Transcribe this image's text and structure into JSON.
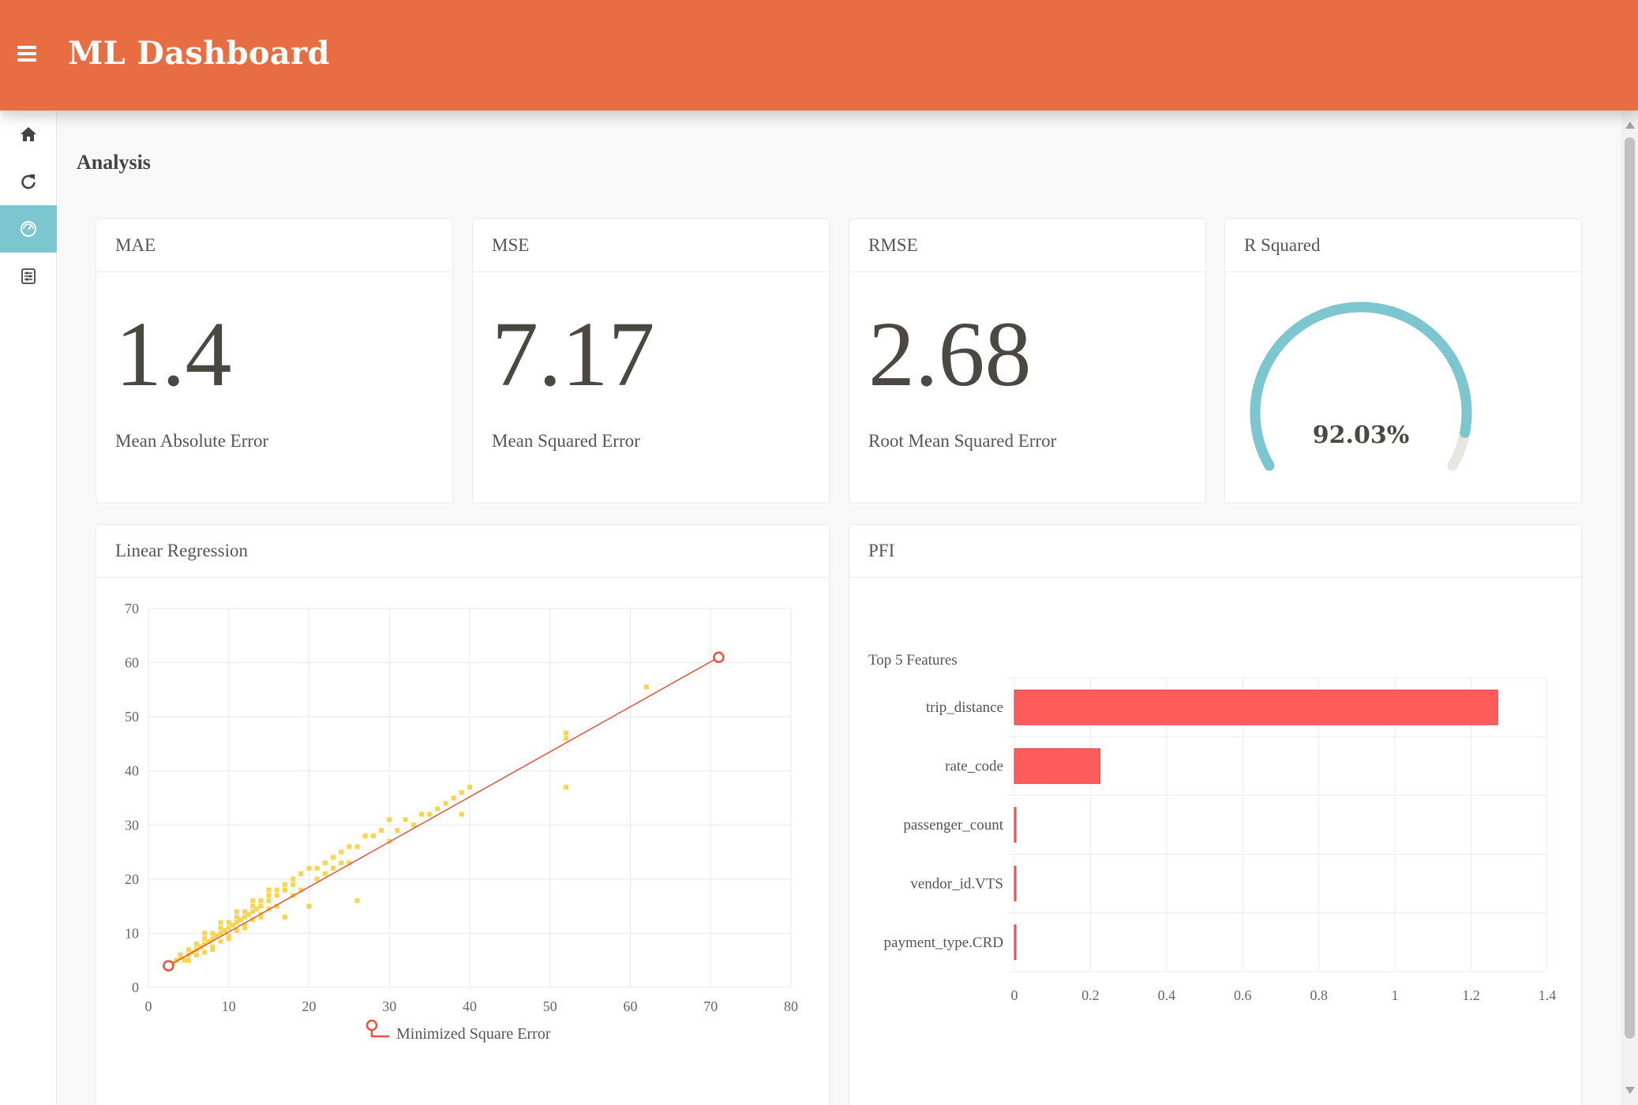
{
  "app": {
    "title": "ML Dashboard"
  },
  "sidebar": {
    "items": [
      {
        "icon": "home-icon",
        "active": false
      },
      {
        "icon": "refresh-icon",
        "active": false
      },
      {
        "icon": "speedometer-icon",
        "active": true
      },
      {
        "icon": "settings-document-icon",
        "active": false
      }
    ]
  },
  "colors": {
    "header": "#e96d43",
    "accent": "#7cc6d0",
    "scatter": "#f5d64e",
    "line": "#e5543f",
    "bar": "#ff5c5c"
  },
  "page": {
    "title": "Analysis"
  },
  "metrics": [
    {
      "title": "MAE",
      "value": "1.4",
      "label": "Mean Absolute Error"
    },
    {
      "title": "MSE",
      "value": "7.17",
      "label": "Mean Squared Error"
    },
    {
      "title": "RMSE",
      "value": "2.68",
      "label": "Root Mean Squared Error"
    }
  ],
  "gauge": {
    "title": "R Squared",
    "value": 0.9203,
    "display": "92.03%"
  },
  "regression": {
    "title": "Linear Regression",
    "chart_data": {
      "type": "scatter",
      "xlim": [
        0,
        80
      ],
      "ylim": [
        0,
        70
      ],
      "x_ticks": [
        0,
        10,
        20,
        30,
        40,
        50,
        60,
        70,
        80
      ],
      "y_ticks": [
        0,
        10,
        20,
        30,
        40,
        50,
        60,
        70
      ],
      "grid": true,
      "legend_position": "bottom",
      "series": [
        {
          "type": "scatter",
          "points": [
            [
              3,
              4.5
            ],
            [
              3.5,
              5
            ],
            [
              4,
              5.5
            ],
            [
              4.5,
              5
            ],
            [
              5,
              6
            ],
            [
              5,
              7
            ],
            [
              5.5,
              6.5
            ],
            [
              6,
              7
            ],
            [
              6,
              8
            ],
            [
              6.5,
              7.5
            ],
            [
              7,
              8
            ],
            [
              7,
              9
            ],
            [
              7.5,
              8.5
            ],
            [
              8,
              9
            ],
            [
              8,
              10
            ],
            [
              8.5,
              9.5
            ],
            [
              9,
              10
            ],
            [
              9,
              11
            ],
            [
              9.5,
              10.5
            ],
            [
              10,
              11
            ],
            [
              10,
              12
            ],
            [
              10.5,
              11.5
            ],
            [
              11,
              12
            ],
            [
              11,
              13
            ],
            [
              11.5,
              12.5
            ],
            [
              12,
              13
            ],
            [
              12,
              14
            ],
            [
              12.5,
              13.5
            ],
            [
              13,
              14
            ],
            [
              13,
              15
            ],
            [
              13.5,
              14.5
            ],
            [
              14,
              15
            ],
            [
              14,
              16
            ],
            [
              15,
              16
            ],
            [
              15,
              17
            ],
            [
              16,
              17
            ],
            [
              16,
              18
            ],
            [
              17,
              18
            ],
            [
              17,
              19
            ],
            [
              18,
              20
            ],
            [
              18,
              19
            ],
            [
              19,
              21
            ],
            [
              20,
              22
            ],
            [
              21,
              22
            ],
            [
              22,
              23
            ],
            [
              23,
              24
            ],
            [
              24,
              25
            ],
            [
              25,
              26
            ],
            [
              26,
              26
            ],
            [
              27,
              28
            ],
            [
              28,
              28
            ],
            [
              29,
              29
            ],
            [
              30,
              31
            ],
            [
              31,
              29
            ],
            [
              32,
              31
            ],
            [
              33,
              30
            ],
            [
              34,
              32
            ],
            [
              35,
              32
            ],
            [
              36,
              33
            ],
            [
              37,
              34
            ],
            [
              38,
              35
            ],
            [
              39,
              36
            ],
            [
              40,
              37
            ],
            [
              39,
              32
            ],
            [
              52,
              37
            ],
            [
              52,
              46
            ],
            [
              52,
              47
            ],
            [
              62,
              55.5
            ],
            [
              8,
              7
            ],
            [
              10,
              9
            ],
            [
              12,
              11
            ],
            [
              14,
              13
            ],
            [
              7,
              10
            ],
            [
              9,
              12
            ],
            [
              11,
              14
            ],
            [
              13,
              16
            ],
            [
              15,
              18
            ],
            [
              17,
              13
            ],
            [
              20,
              15
            ],
            [
              22,
              21
            ],
            [
              25,
              23
            ],
            [
              26,
              16
            ],
            [
              30,
              27
            ],
            [
              4,
              6
            ],
            [
              5,
              5
            ],
            [
              6,
              6
            ],
            [
              7,
              6.5
            ],
            [
              8,
              7.5
            ],
            [
              9,
              8.5
            ],
            [
              10,
              9.5
            ],
            [
              11,
              10.5
            ],
            [
              12,
              11.5
            ],
            [
              13,
              12.5
            ],
            [
              14,
              13.5
            ],
            [
              15,
              14.5
            ],
            [
              16,
              15
            ],
            [
              18,
              17
            ],
            [
              19,
              18
            ],
            [
              21,
              20
            ],
            [
              23,
              22
            ],
            [
              24,
              23
            ]
          ]
        },
        {
          "name": "Minimized Square Error",
          "type": "line",
          "points": [
            [
              2.5,
              4
            ],
            [
              71,
              61
            ]
          ]
        }
      ]
    }
  },
  "pfi": {
    "title": "PFI",
    "chart_data": {
      "type": "bar",
      "orientation": "horizontal",
      "title": "Top 5 Features",
      "categories": [
        "trip_distance",
        "rate_code",
        "passenger_count",
        "vendor_id.VTS",
        "payment_type.CRD"
      ],
      "values": [
        1.27,
        0.225,
        0.004,
        0.002,
        0.002
      ],
      "xlim": [
        0,
        1.4
      ],
      "x_ticks": [
        "0",
        "0.2",
        "0.4",
        "0.6",
        "0.8",
        "1",
        "1.2",
        "1.4"
      ],
      "grid": true
    }
  }
}
